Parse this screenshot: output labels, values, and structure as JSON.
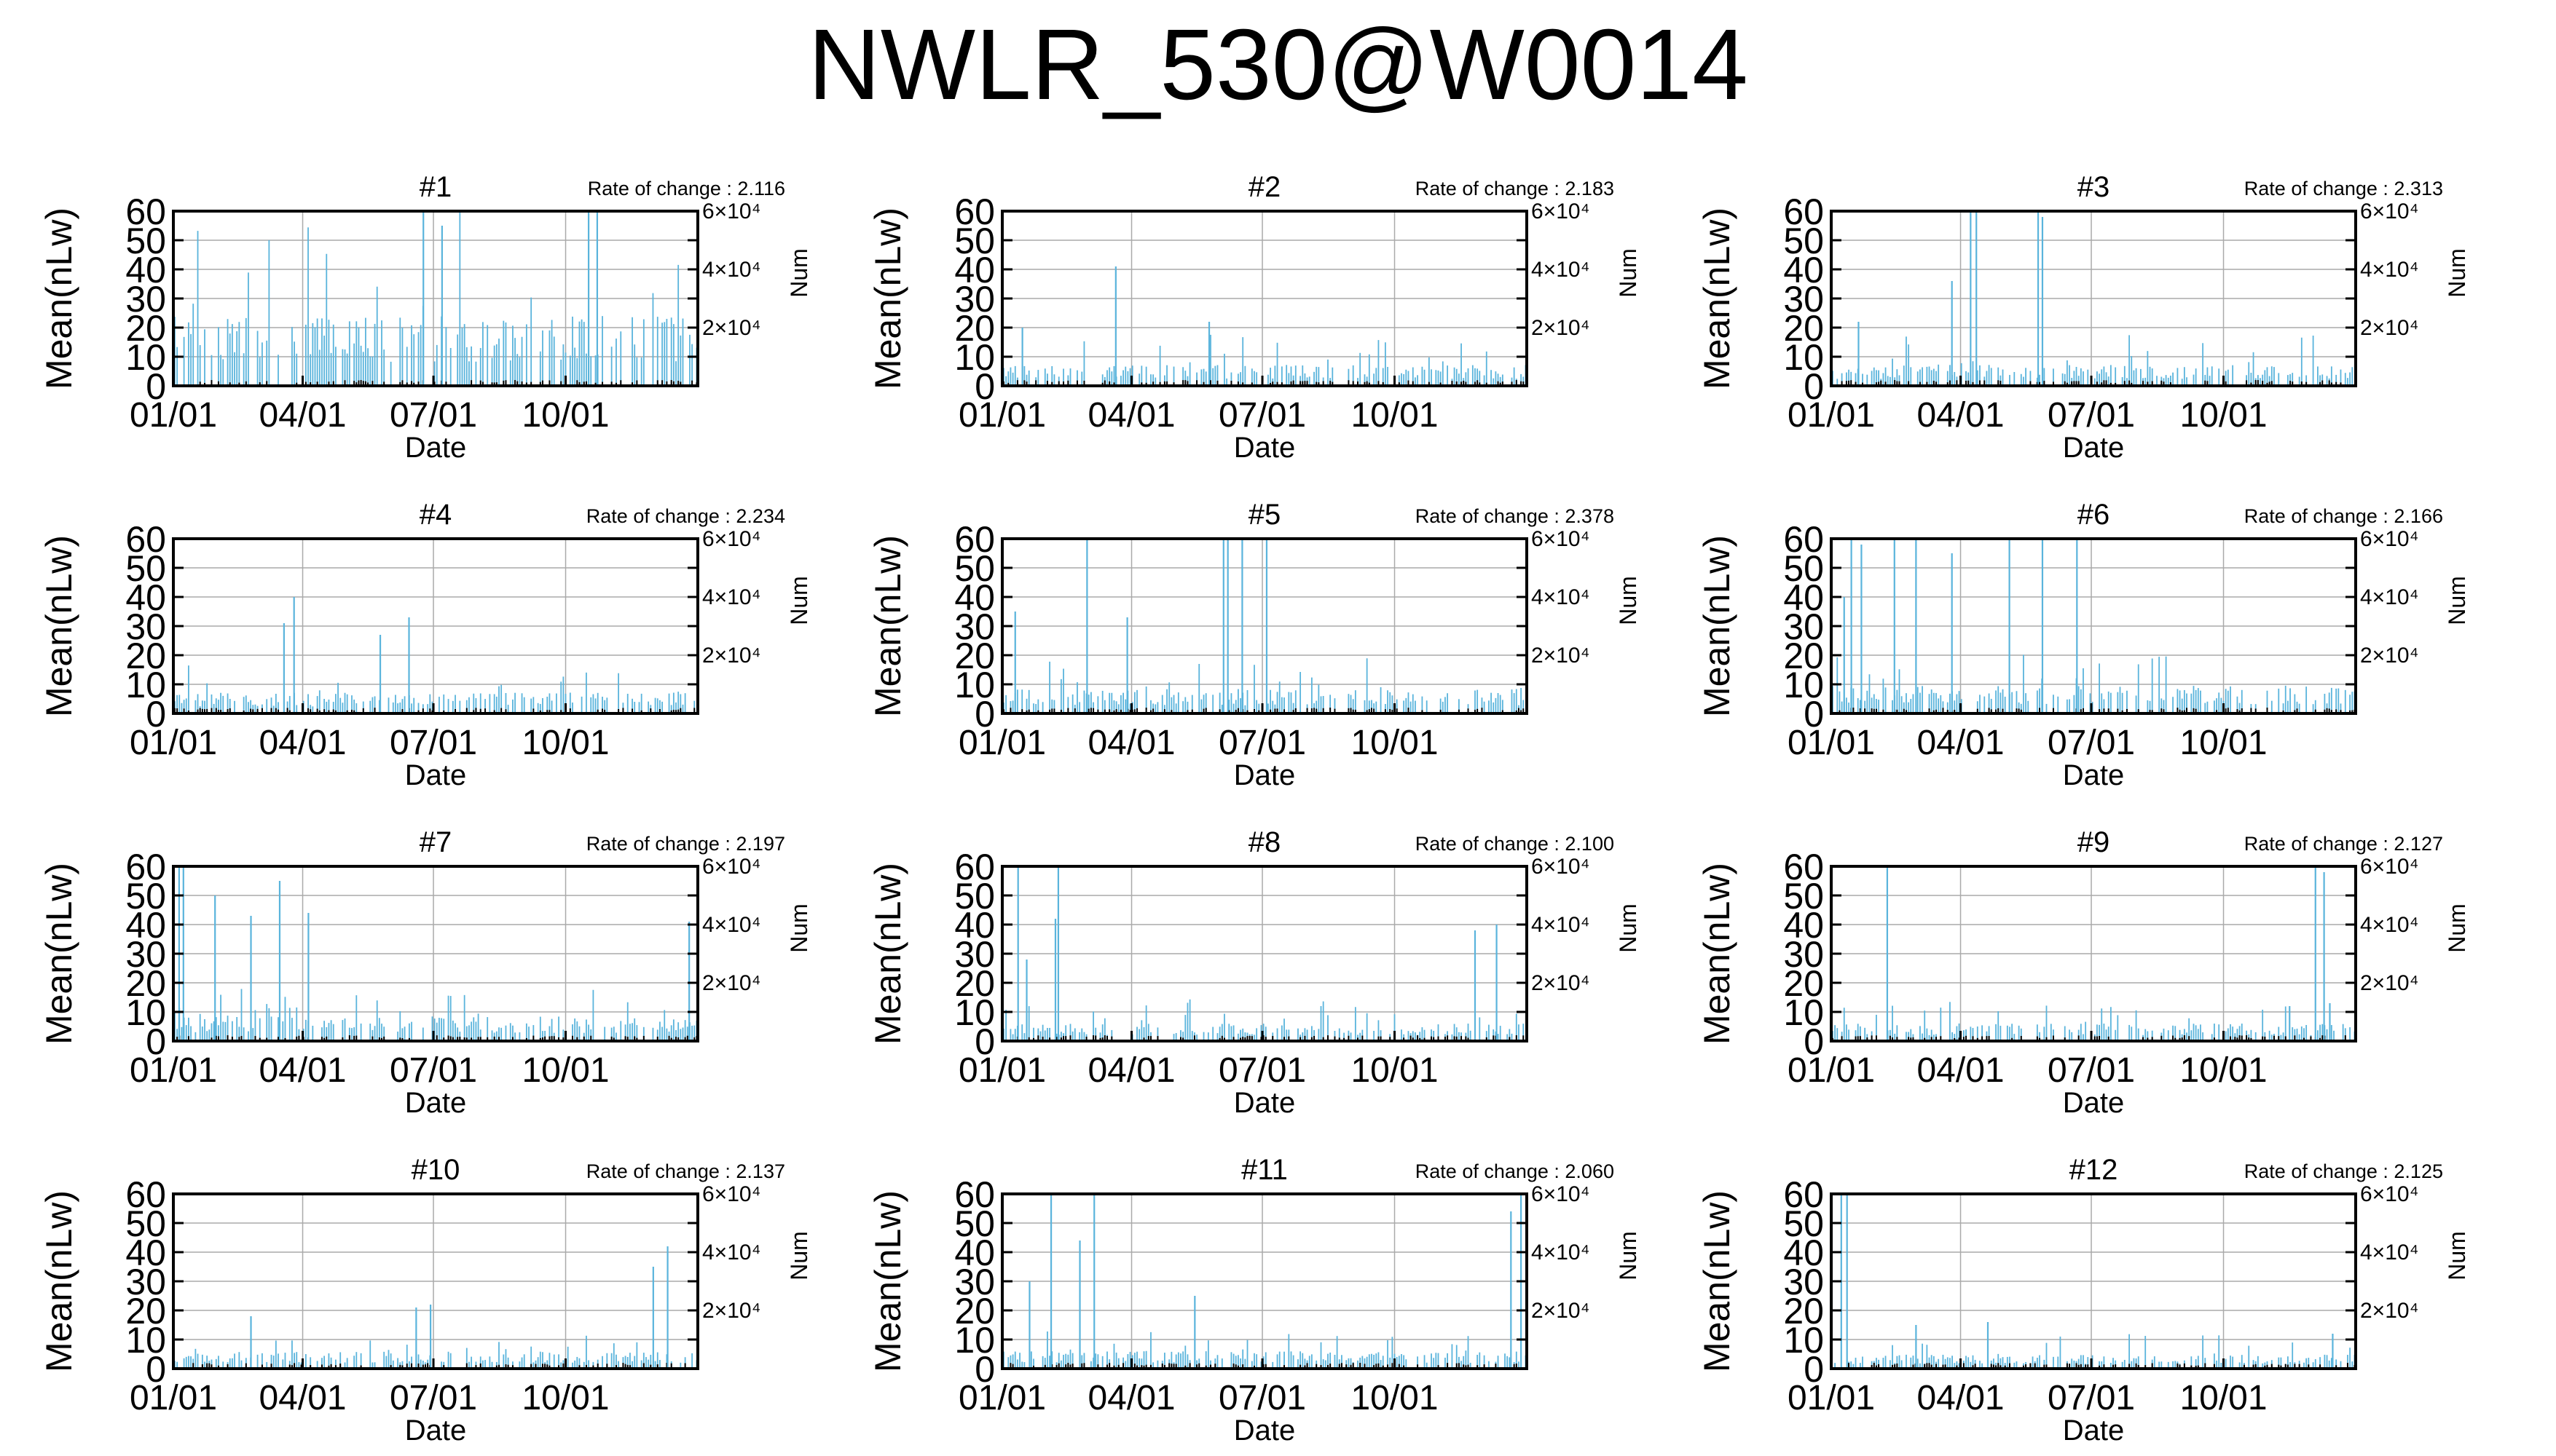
{
  "title": "NWLR_530@W0014",
  "colors": {
    "bar": "#5ab4dc",
    "axis": "#000000",
    "grid": "#aaaaaa",
    "background": "#ffffff"
  },
  "chart_data": {
    "type": "bar",
    "layout_grid": "4 rows x 3 columns",
    "shared_axes": {
      "xlabel": "Date",
      "ylabel": "Mean(nLw)",
      "y2label": "Num",
      "x_tick_labels": [
        "01/01",
        "04/01",
        "07/01",
        "10/01"
      ],
      "x_range_day_of_year": [
        1,
        366
      ],
      "ylim": [
        0,
        60
      ],
      "y_ticks": [
        0,
        10,
        20,
        30,
        40,
        50,
        60
      ],
      "y2_ticks": [
        "2×10⁴",
        "4×10⁴",
        "6×10⁴"
      ],
      "y2lim": [
        0,
        60000
      ],
      "grid": true
    },
    "panels": [
      {
        "title": "#1",
        "rate_label": "Rate of change : 2.116",
        "profile": {
          "base": 20,
          "amp": 22,
          "spikes": [
            [
              175,
              60
            ],
            [
              290,
              60
            ],
            [
              296,
              60
            ],
            [
              188,
              55
            ]
          ]
        }
      },
      {
        "title": "#2",
        "rate_label": "Rate of change : 2.183",
        "profile": {
          "base": 6,
          "amp": 6,
          "spikes": [
            [
              80,
              41
            ],
            [
              15,
              20
            ],
            [
              145,
              22
            ]
          ]
        }
      },
      {
        "title": "#3",
        "rate_label": "Rate of change : 2.313",
        "profile": {
          "base": 6,
          "amp": 6,
          "spikes": [
            [
              98,
              60
            ],
            [
              102,
              60
            ],
            [
              145,
              60
            ],
            [
              148,
              58
            ],
            [
              85,
              36
            ],
            [
              20,
              22
            ]
          ]
        }
      },
      {
        "title": "#4",
        "rate_label": "Rate of change : 2.234",
        "profile": {
          "base": 6,
          "amp": 5,
          "spikes": [
            [
              85,
              40
            ],
            [
              78,
              31
            ],
            [
              145,
              27
            ],
            [
              165,
              33
            ]
          ]
        }
      },
      {
        "title": "#5",
        "rate_label": "Rate of change : 2.378",
        "profile": {
          "base": 7,
          "amp": 6,
          "spikes": [
            [
              155,
              60
            ],
            [
              158,
              60
            ],
            [
              168,
              60
            ],
            [
              185,
              60
            ],
            [
              60,
              60
            ],
            [
              88,
              33
            ],
            [
              10,
              35
            ]
          ]
        }
      },
      {
        "title": "#6",
        "rate_label": "Rate of change : 2.166",
        "profile": {
          "base": 8,
          "amp": 7,
          "spikes": [
            [
              15,
              60
            ],
            [
              45,
              60
            ],
            [
              60,
              60
            ],
            [
              85,
              55
            ],
            [
              125,
              60
            ],
            [
              148,
              60
            ],
            [
              172,
              60
            ],
            [
              22,
              58
            ],
            [
              10,
              40
            ]
          ]
        }
      },
      {
        "title": "#7",
        "rate_label": "Rate of change : 2.197",
        "profile": {
          "base": 7,
          "amp": 6,
          "spikes": [
            [
              5,
              60
            ],
            [
              8,
              60
            ],
            [
              30,
              50
            ],
            [
              75,
              55
            ],
            [
              95,
              44
            ],
            [
              55,
              43
            ],
            [
              360,
              41
            ]
          ]
        }
      },
      {
        "title": "#8",
        "rate_label": "Rate of change : 2.100",
        "profile": {
          "base": 5,
          "amp": 5,
          "spikes": [
            [
              12,
              60
            ],
            [
              40,
              60
            ],
            [
              38,
              42
            ],
            [
              330,
              38
            ],
            [
              345,
              40
            ],
            [
              18,
              28
            ]
          ]
        }
      },
      {
        "title": "#9",
        "rate_label": "Rate of change : 2.127",
        "profile": {
          "base": 5,
          "amp": 4,
          "spikes": [
            [
              40,
              60
            ],
            [
              338,
              60
            ],
            [
              344,
              58
            ],
            [
              348,
              13
            ],
            [
              320,
              12
            ]
          ]
        }
      },
      {
        "title": "#10",
        "rate_label": "Rate of change : 2.137",
        "profile": {
          "base": 5,
          "amp": 4,
          "spikes": [
            [
              335,
              35
            ],
            [
              345,
              42
            ],
            [
              55,
              18
            ],
            [
              180,
              22
            ],
            [
              170,
              21
            ]
          ]
        }
      },
      {
        "title": "#11",
        "rate_label": "Rate of change : 2.060",
        "profile": {
          "base": 5,
          "amp": 4,
          "spikes": [
            [
              20,
              30
            ],
            [
              35,
              60
            ],
            [
              55,
              44
            ],
            [
              65,
              60
            ],
            [
              355,
              54
            ],
            [
              362,
              60
            ],
            [
              135,
              25
            ]
          ]
        }
      },
      {
        "title": "#12",
        "rate_label": "Rate of change : 2.125",
        "profile": {
          "base": 4,
          "amp": 4,
          "spikes": [
            [
              8,
              60
            ],
            [
              12,
              60
            ],
            [
              60,
              15
            ],
            [
              110,
              16
            ],
            [
              350,
              12
            ]
          ]
        }
      }
    ]
  }
}
